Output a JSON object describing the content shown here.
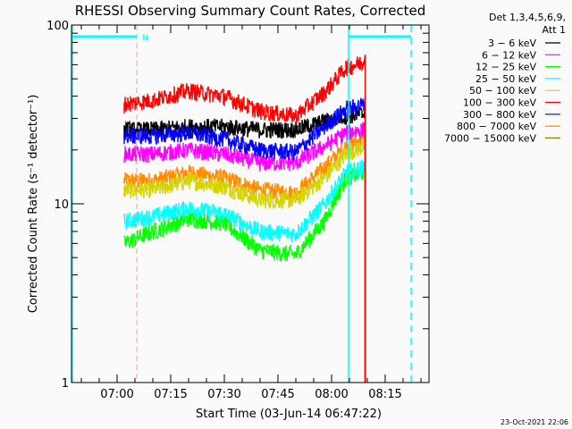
{
  "chart_data": {
    "type": "line",
    "title": "RHESSI Observing Summary Count Rates, Corrected",
    "xlabel": "Start Time (03-Jun-14 06:47:22)",
    "ylabel": "Corrected Count Rate (s⁻¹ detector⁻¹)",
    "yscale": "log",
    "ylim": [
      1,
      100
    ],
    "xlim_minutes_from_0700": [
      -12.75,
      87.25
    ],
    "x_ticks": [
      "07:00",
      "07:15",
      "07:30",
      "07:45",
      "08:00",
      "08:15"
    ],
    "y_ticks": [
      "1",
      "10",
      "100"
    ],
    "legend_header": [
      "Det 1,3,4,5,6,9,",
      "Att 1"
    ],
    "x_minutes_from_0700": [
      2,
      10,
      20,
      30,
      40,
      50,
      58,
      64,
      69
    ],
    "series": [
      {
        "name": "3 - 6 keV",
        "color": "#000000",
        "values": [
          26,
          26,
          27,
          27,
          26,
          26,
          29,
          31,
          32
        ]
      },
      {
        "name": "6 - 12 keV",
        "color": "#ff00ff",
        "values": [
          19,
          19,
          20,
          19,
          17,
          17,
          21,
          25,
          26
        ]
      },
      {
        "name": "12 - 25 keV",
        "color": "#00ff00",
        "values": [
          6,
          7,
          8.3,
          7.8,
          5.5,
          5.2,
          8,
          14,
          15
        ]
      },
      {
        "name": "25 - 50 keV",
        "color": "#00ffff",
        "values": [
          8,
          8.5,
          9.5,
          8.8,
          7,
          6.8,
          10,
          15,
          16
        ]
      },
      {
        "name": "50 - 100 keV",
        "color": "#d4d400",
        "values": [
          12,
          12,
          13.5,
          12.5,
          10.5,
          10.5,
          14,
          19,
          21
        ]
      },
      {
        "name": "100 - 300 keV",
        "color": "#ff0000",
        "values": [
          36,
          38,
          43,
          40,
          33,
          31,
          42,
          58,
          62
        ]
      },
      {
        "name": "300 - 800 keV",
        "color": "#0000ff",
        "values": [
          24,
          24,
          25,
          23,
          20,
          19.5,
          27,
          34,
          36
        ]
      },
      {
        "name": "800 - 7000 keV",
        "color": "#ff8c00",
        "values": [
          13.5,
          13.5,
          15,
          14,
          12,
          11.5,
          16,
          21,
          23
        ]
      },
      {
        "name": "7000 - 15000 keV",
        "color": "#808000",
        "values": []
      }
    ],
    "annotations": {
      "night_label": "N",
      "night_start_minutes": 5.5,
      "saa_solid_line_minutes": 64.75,
      "saa_dashed_line_minutes": 82.25
    },
    "timestamp": "23-Oct-2021 22:06"
  }
}
